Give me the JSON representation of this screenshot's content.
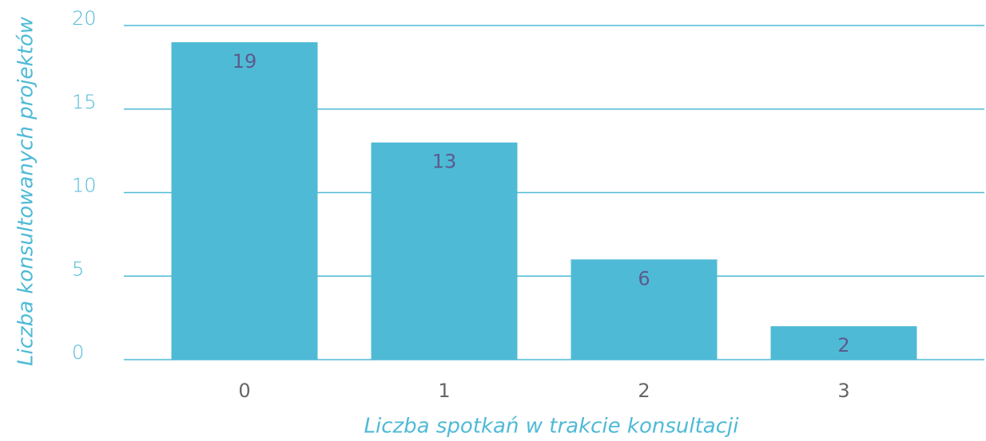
{
  "chart_data": {
    "type": "bar",
    "x_label": "Liczba spotkań w trakcie konsultacji",
    "y_label": "Liczba konsultowanych projektów",
    "categories": [
      "0",
      "1",
      "2",
      "3"
    ],
    "values": [
      19,
      13,
      6,
      2
    ],
    "color": "#4fbad6",
    "ylim": [
      0,
      20
    ],
    "yticks": [
      0,
      5,
      10,
      15,
      20
    ],
    "grid": true
  }
}
